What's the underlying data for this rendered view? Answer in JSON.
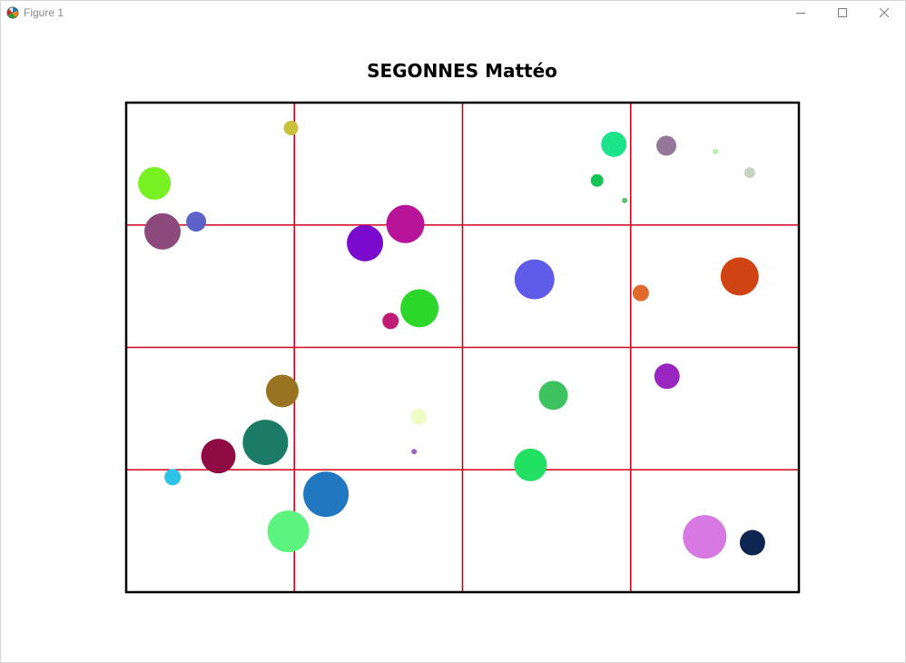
{
  "window": {
    "title": "Figure 1",
    "icon": "matplotlib-icon",
    "controls": [
      "minimize-icon",
      "maximize-icon",
      "close-icon"
    ]
  },
  "chart_data": {
    "type": "scatter",
    "title": "SEGONNES Mattéo",
    "xlabel": "",
    "ylabel": "",
    "xlim": [
      0,
      1000
    ],
    "ylim": [
      0,
      1000
    ],
    "axes_visible": false,
    "grid": true,
    "grid_color": "#d0021b",
    "grid_x": [
      250,
      500,
      750
    ],
    "grid_y": [
      250,
      500,
      750
    ],
    "points": [
      {
        "x": 245,
        "y": 948,
        "r": 8,
        "color": "#c8c23c"
      },
      {
        "x": 42,
        "y": 835,
        "r": 18,
        "color": "#79f022"
      },
      {
        "x": 54,
        "y": 737,
        "r": 20,
        "color": "#8c4a7c"
      },
      {
        "x": 104,
        "y": 757,
        "r": 11,
        "color": "#5e62c8"
      },
      {
        "x": 355,
        "y": 713,
        "r": 20,
        "color": "#7a0bce"
      },
      {
        "x": 415,
        "y": 752,
        "r": 21,
        "color": "#b7149a"
      },
      {
        "x": 436,
        "y": 580,
        "r": 21,
        "color": "#2dd62a"
      },
      {
        "x": 393,
        "y": 554,
        "r": 9,
        "color": "#c11c75"
      },
      {
        "x": 725,
        "y": 915,
        "r": 14,
        "color": "#1de38a"
      },
      {
        "x": 803,
        "y": 912,
        "r": 11,
        "color": "#95779a"
      },
      {
        "x": 700,
        "y": 841,
        "r": 7,
        "color": "#14c454"
      },
      {
        "x": 741,
        "y": 800,
        "r": 3,
        "color": "#5fbf70"
      },
      {
        "x": 876,
        "y": 900,
        "r": 3,
        "color": "#b4f0a6"
      },
      {
        "x": 927,
        "y": 857,
        "r": 6,
        "color": "#c6d5bf"
      },
      {
        "x": 607,
        "y": 639,
        "r": 22,
        "color": "#5f5be9"
      },
      {
        "x": 765,
        "y": 611,
        "r": 9,
        "color": "#e06a2c"
      },
      {
        "x": 912,
        "y": 645,
        "r": 21,
        "color": "#cf4412"
      },
      {
        "x": 232,
        "y": 411,
        "r": 18,
        "color": "#977322"
      },
      {
        "x": 207,
        "y": 306,
        "r": 25,
        "color": "#1b7b66"
      },
      {
        "x": 137,
        "y": 278,
        "r": 19,
        "color": "#8e0b43"
      },
      {
        "x": 69,
        "y": 235,
        "r": 9,
        "color": "#2fc2e8"
      },
      {
        "x": 297,
        "y": 200,
        "r": 25,
        "color": "#2177c0"
      },
      {
        "x": 241,
        "y": 124,
        "r": 23,
        "color": "#5cf37e"
      },
      {
        "x": 435,
        "y": 358,
        "r": 9,
        "color": "#eefcc6"
      },
      {
        "x": 428,
        "y": 287,
        "r": 3,
        "color": "#9a64c8"
      },
      {
        "x": 635,
        "y": 402,
        "r": 16,
        "color": "#3ec25f"
      },
      {
        "x": 601,
        "y": 260,
        "r": 18,
        "color": "#22e162"
      },
      {
        "x": 804,
        "y": 441,
        "r": 14,
        "color": "#9a26c0"
      },
      {
        "x": 860,
        "y": 113,
        "r": 24,
        "color": "#d879e3"
      },
      {
        "x": 931,
        "y": 101,
        "r": 14,
        "color": "#0e2552"
      }
    ]
  }
}
